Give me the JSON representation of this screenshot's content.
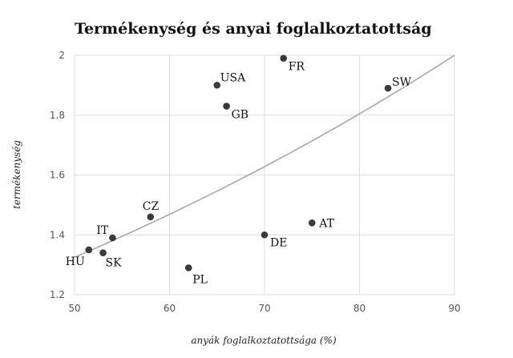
{
  "chart_data": {
    "type": "scatter",
    "title": "Termékenység és anyai foglalkoztatottság",
    "xlabel": "anyák foglalkoztatottsága (%)",
    "ylabel": "termékenység",
    "xlim": [
      50,
      90
    ],
    "ylim": [
      1.2,
      2.0
    ],
    "xticks": [
      "50",
      "60",
      "70",
      "80",
      "90"
    ],
    "yticks": [
      "1.2",
      "1.4",
      "1.6",
      "1.8",
      "2"
    ],
    "grid": true,
    "points": [
      {
        "label": "FR",
        "x": 72.0,
        "y": 1.99,
        "color": "#3a3a3a"
      },
      {
        "label": "SW",
        "x": 83.0,
        "y": 1.89,
        "color": "#3a3a3a"
      },
      {
        "label": "USA",
        "x": 65.0,
        "y": 1.9,
        "color": "#3a3a3a"
      },
      {
        "label": "GB",
        "x": 66.0,
        "y": 1.83,
        "color": "#3a3a3a"
      },
      {
        "label": "CZ",
        "x": 58.0,
        "y": 1.46,
        "color": "#3a3a3a"
      },
      {
        "label": "AT",
        "x": 75.0,
        "y": 1.44,
        "color": "#3a3a3a"
      },
      {
        "label": "DE",
        "x": 70.0,
        "y": 1.4,
        "color": "#3a3a3a"
      },
      {
        "label": "IT",
        "x": 54.0,
        "y": 1.39,
        "color": "#3a3a3a"
      },
      {
        "label": "HU",
        "x": 51.5,
        "y": 1.35,
        "color": "#d0202a"
      },
      {
        "label": "SK",
        "x": 53.0,
        "y": 1.34,
        "color": "#3a3a3a"
      },
      {
        "label": "PL",
        "x": 62.0,
        "y": 1.29,
        "color": "#3a3a3a"
      }
    ],
    "trendline": {
      "type": "exponential",
      "x": [
        50,
        90
      ],
      "y": [
        1.325,
        2.0
      ],
      "color": "#a8a8a8"
    }
  }
}
